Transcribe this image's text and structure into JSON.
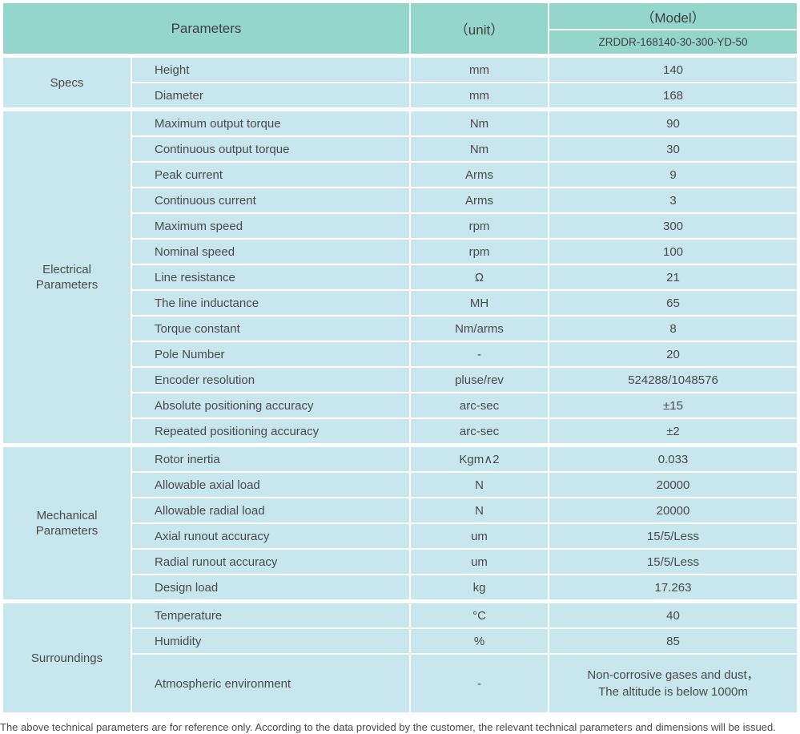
{
  "colors": {
    "header_bg": "#95d6cc",
    "row_bg": "#c8e6ed",
    "head_text": "#3f3f3f",
    "body_text": "#4a4a4a"
  },
  "header": {
    "parameters_label": "Parameters",
    "unit_label": "（unit）",
    "model_label": "（Model）",
    "model_code": "ZRDDR-168140-30-300-YD-50"
  },
  "sections": [
    {
      "label": "Specs",
      "rows": [
        {
          "name": "Height",
          "unit": "mm",
          "value": "140"
        },
        {
          "name": "Diameter",
          "unit": "mm",
          "value": "168"
        }
      ]
    },
    {
      "label": "Electrical Parameters",
      "rows": [
        {
          "name": "Maximum output torque",
          "unit": "Nm",
          "value": "90"
        },
        {
          "name": "Continuous output torque",
          "unit": "Nm",
          "value": "30"
        },
        {
          "name": "Peak current",
          "unit": "Arms",
          "value": "9"
        },
        {
          "name": "Continuous current",
          "unit": "Arms",
          "value": "3"
        },
        {
          "name": "Maximum speed",
          "unit": "rpm",
          "value": "300"
        },
        {
          "name": "Nominal speed",
          "unit": "rpm",
          "value": "100"
        },
        {
          "name": "Line resistance",
          "unit": "Ω",
          "value": "21"
        },
        {
          "name": "The line inductance",
          "unit": "MH",
          "value": "65"
        },
        {
          "name": "Torque constant",
          "unit": "Nm/arms",
          "value": "8"
        },
        {
          "name": "Pole Number",
          "unit": "-",
          "value": "20"
        },
        {
          "name": "Encoder resolution",
          "unit": "pluse/rev",
          "value": "524288/1048576"
        },
        {
          "name": "Absolute positioning accuracy",
          "unit": "arc-sec",
          "value": "±15"
        },
        {
          "name": "Repeated positioning accuracy",
          "unit": "arc-sec",
          "value": "±2"
        }
      ]
    },
    {
      "label": "Mechanical Parameters",
      "rows": [
        {
          "name": "Rotor inertia",
          "unit": "Kgm∧2",
          "value": "0.033"
        },
        {
          "name": "Allowable axial load",
          "unit": "N",
          "value": "20000"
        },
        {
          "name": "Allowable radial load",
          "unit": "N",
          "value": "20000"
        },
        {
          "name": "Axial runout accuracy",
          "unit": "um",
          "value": "15/5/Less"
        },
        {
          "name": "Radial runout accuracy",
          "unit": "um",
          "value": "15/5/Less"
        },
        {
          "name": "Design load",
          "unit": "kg",
          "value": "17.263"
        }
      ]
    },
    {
      "label": "Surroundings",
      "rows": [
        {
          "name": "Temperature",
          "unit": "°C",
          "value": "40"
        },
        {
          "name": "Humidity",
          "unit": "%",
          "value": "85"
        },
        {
          "name": "Atmospheric environment",
          "unit": "-",
          "value": "Non-corrosive gases and dust，\nThe altitude is below 1000m",
          "tall": true
        }
      ]
    }
  ],
  "footer": {
    "note": "The above technical parameters are for reference only. According to the data provided by the customer, the relevant technical parameters and dimensions will be issued."
  }
}
